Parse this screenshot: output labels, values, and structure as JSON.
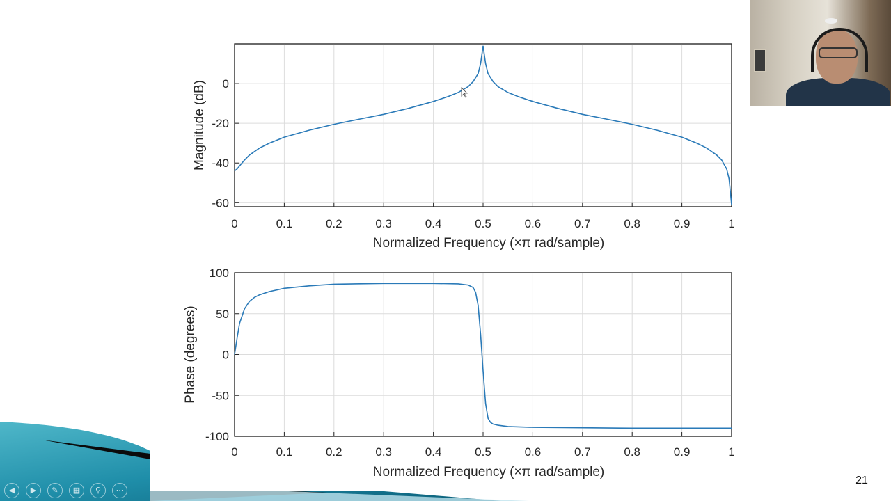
{
  "slide": {
    "number": "21"
  },
  "webcam": {
    "icon": "presenter-webcam"
  },
  "nav_controls": [
    {
      "name": "previous-slide-button",
      "glyph": "◀"
    },
    {
      "name": "next-slide-button",
      "glyph": "▶"
    },
    {
      "name": "pen-tool-button",
      "glyph": "✎"
    },
    {
      "name": "see-all-slides-button",
      "glyph": "▦"
    },
    {
      "name": "zoom-button",
      "glyph": "⚲"
    },
    {
      "name": "more-options-button",
      "glyph": "⋯"
    }
  ],
  "colors": {
    "curve": "#2a7ab8",
    "accent_teal": "#1f8ea9"
  },
  "chart_data": [
    {
      "type": "line",
      "title": "",
      "xlabel": "Normalized Frequency  (×π rad/sample)",
      "ylabel": "Magnitude (dB)",
      "xlim": [
        0,
        1
      ],
      "ylim": [
        -62,
        20
      ],
      "xticks": [
        "0",
        "0.1",
        "0.2",
        "0.3",
        "0.4",
        "0.5",
        "0.6",
        "0.7",
        "0.8",
        "0.9",
        "1"
      ],
      "xtick_values": [
        0,
        0.1,
        0.2,
        0.3,
        0.4,
        0.5,
        0.6,
        0.7,
        0.8,
        0.9,
        1
      ],
      "yticks": [
        "0",
        "-20",
        "-40",
        "-60"
      ],
      "ytick_values": [
        0,
        -20,
        -40,
        -60
      ],
      "grid": true,
      "series": [
        {
          "name": "magnitude",
          "x": [
            0,
            0.005,
            0.01,
            0.02,
            0.03,
            0.05,
            0.07,
            0.1,
            0.15,
            0.2,
            0.25,
            0.3,
            0.35,
            0.4,
            0.43,
            0.45,
            0.47,
            0.48,
            0.49,
            0.495,
            0.5,
            0.505,
            0.51,
            0.52,
            0.53,
            0.55,
            0.57,
            0.6,
            0.65,
            0.7,
            0.75,
            0.8,
            0.85,
            0.9,
            0.93,
            0.95,
            0.97,
            0.98,
            0.99,
            0.995,
            1
          ],
          "y": [
            -44,
            -43,
            -41.5,
            -38.5,
            -36,
            -32.5,
            -30,
            -27,
            -23.5,
            -20.5,
            -18,
            -15.5,
            -12.5,
            -9,
            -6.5,
            -4.5,
            -1.5,
            1,
            5,
            10,
            19,
            10,
            5,
            1,
            -1.5,
            -4.5,
            -6.5,
            -9,
            -12.5,
            -15.5,
            -18,
            -20.5,
            -23.5,
            -27,
            -30,
            -32.5,
            -36,
            -38.5,
            -43,
            -48,
            -61
          ]
        }
      ]
    },
    {
      "type": "line",
      "title": "",
      "xlabel": "Normalized Frequency  (×π rad/sample)",
      "ylabel": "Phase (degrees)",
      "xlim": [
        0,
        1
      ],
      "ylim": [
        -100,
        100
      ],
      "xticks": [
        "0",
        "0.1",
        "0.2",
        "0.3",
        "0.4",
        "0.5",
        "0.6",
        "0.7",
        "0.8",
        "0.9",
        "1"
      ],
      "xtick_values": [
        0,
        0.1,
        0.2,
        0.3,
        0.4,
        0.5,
        0.6,
        0.7,
        0.8,
        0.9,
        1
      ],
      "yticks": [
        "100",
        "50",
        "0",
        "-50",
        "-100"
      ],
      "ytick_values": [
        100,
        50,
        0,
        -50,
        -100
      ],
      "grid": true,
      "series": [
        {
          "name": "phase",
          "x": [
            0,
            0.005,
            0.01,
            0.02,
            0.03,
            0.04,
            0.05,
            0.07,
            0.1,
            0.15,
            0.2,
            0.3,
            0.4,
            0.45,
            0.47,
            0.48,
            0.485,
            0.49,
            0.495,
            0.5,
            0.505,
            0.51,
            0.515,
            0.52,
            0.53,
            0.55,
            0.6,
            0.7,
            0.8,
            0.9,
            1
          ],
          "y": [
            0,
            20,
            38,
            56,
            65,
            70,
            73,
            77,
            81,
            84,
            86,
            87,
            87,
            86.5,
            85,
            82,
            76,
            60,
            25,
            -20,
            -60,
            -78,
            -83,
            -85,
            -86.5,
            -88,
            -89,
            -89.5,
            -90,
            -90,
            -90
          ]
        }
      ]
    }
  ]
}
